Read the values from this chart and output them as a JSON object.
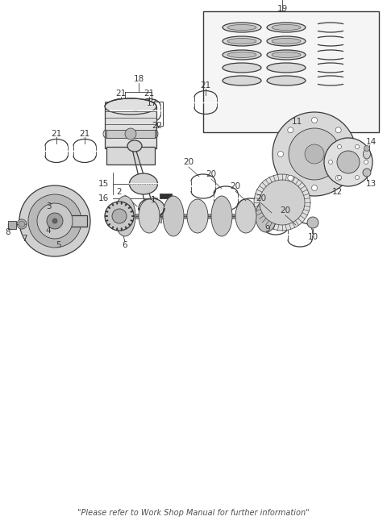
{
  "bg_color": "#ffffff",
  "line_color": "#3a3a3a",
  "footer_text": "\"Please refer to Work Shop Manual for further information\"",
  "figsize": [
    4.8,
    6.56
  ],
  "dpi": 100,
  "xlim": [
    0,
    4.8
  ],
  "ylim": [
    0,
    6.56
  ]
}
